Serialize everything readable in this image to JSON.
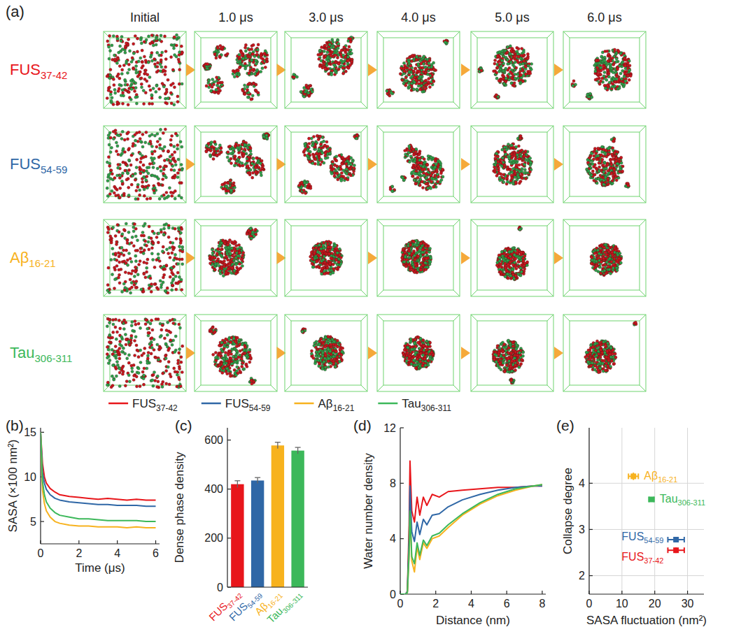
{
  "panel_a": {
    "label": "(a)",
    "columns": [
      "Initial",
      "1.0 μs",
      "3.0 μs",
      "4.0 μs",
      "5.0 μs",
      "6.0 μs"
    ],
    "rows": [
      {
        "name": "FUS37-42",
        "color": "#e8161b"
      },
      {
        "name": "FUS54-59",
        "color": "#2f67a6"
      },
      {
        "name": "Aβ16-21",
        "color": "#f7b21e"
      },
      {
        "name": "Tau306-311",
        "color": "#3cb85a"
      }
    ]
  },
  "chart_data": [
    {
      "type": "line",
      "title": "(b)",
      "x_label": "Time (μs)",
      "y_label": "SASA (×100 nm²)",
      "x": [
        0,
        0.1,
        0.2,
        0.3,
        0.5,
        0.75,
        1,
        1.5,
        2,
        2.5,
        3,
        3.5,
        4,
        4.5,
        5,
        5.5,
        6
      ],
      "series": [
        {
          "name": "FUS37-42",
          "color": "#e8161b",
          "values": [
            15,
            11.5,
            10,
            9.3,
            8.7,
            8.3,
            8.0,
            7.8,
            7.7,
            7.6,
            7.5,
            7.6,
            7.5,
            7.4,
            7.5,
            7.4,
            7.4
          ]
        },
        {
          "name": "FUS54-59",
          "color": "#2f67a6",
          "values": [
            15,
            10.5,
            9.3,
            8.6,
            8.0,
            7.6,
            7.4,
            7.2,
            7.1,
            7.0,
            6.9,
            6.9,
            6.8,
            6.8,
            6.8,
            6.7,
            6.7
          ]
        },
        {
          "name": "Aβ16-21",
          "color": "#f7b21e",
          "values": [
            15,
            8.5,
            7.0,
            6.2,
            5.5,
            5.0,
            4.8,
            4.6,
            4.5,
            4.5,
            4.4,
            4.4,
            4.4,
            4.3,
            4.4,
            4.3,
            4.3
          ]
        },
        {
          "name": "Tau306-311",
          "color": "#3cb85a",
          "values": [
            15,
            9.5,
            8.0,
            7.2,
            6.5,
            6.0,
            5.7,
            5.5,
            5.3,
            5.3,
            5.2,
            5.1,
            5.1,
            5.1,
            5.1,
            5.0,
            5.0
          ]
        }
      ],
      "xlim": [
        0,
        6.2
      ],
      "xticks": [
        0,
        2,
        4,
        6
      ],
      "ylim": [
        2.5,
        15.5
      ],
      "yticks": [
        5,
        10,
        15
      ],
      "legend": "top"
    },
    {
      "type": "bar",
      "title": "(c)",
      "y_label": "Dense phase density",
      "categories": [
        "FUS37-42",
        "FUS54-59",
        "Aβ16-21",
        "Tau306-311"
      ],
      "values": [
        420,
        435,
        578,
        557
      ],
      "errors": [
        14,
        12,
        13,
        13
      ],
      "colors": [
        "#e8161b",
        "#2f67a6",
        "#f7b21e",
        "#3cb85a"
      ],
      "ylim": [
        0,
        650
      ],
      "yticks": [
        0,
        200,
        400,
        600
      ]
    },
    {
      "type": "line",
      "title": "(d)",
      "x_label": "Distance (nm)",
      "y_label": "Water number density",
      "x": [
        0,
        0.3,
        0.4,
        0.5,
        0.55,
        0.65,
        0.8,
        0.95,
        1.1,
        1.3,
        1.5,
        1.8,
        2.2,
        2.7,
        3.5,
        4.5,
        5.5,
        6.5,
        7.5,
        8
      ],
      "series": [
        {
          "color": "#e8161b",
          "values": [
            0,
            0,
            0.2,
            5,
            9.6,
            6,
            5.2,
            7.0,
            5.7,
            7.0,
            6.4,
            7.2,
            7.0,
            7.4,
            7.5,
            7.6,
            7.7,
            7.7,
            7.8,
            7.8
          ]
        },
        {
          "color": "#2f67a6",
          "values": [
            0,
            0,
            0.2,
            4,
            7.8,
            4.5,
            3.8,
            5.2,
            4.3,
            5.4,
            5.0,
            5.7,
            5.8,
            6.3,
            6.8,
            7.2,
            7.5,
            7.7,
            7.8,
            7.8
          ]
        },
        {
          "color": "#f7b21e",
          "values": [
            0,
            0,
            0.1,
            2.8,
            5.9,
            2.4,
            1.6,
            3.4,
            2.5,
            3.7,
            3.3,
            4.0,
            4.2,
            4.8,
            5.7,
            6.5,
            7.1,
            7.5,
            7.8,
            7.9
          ]
        },
        {
          "color": "#3cb85a",
          "values": [
            0,
            0,
            0.1,
            3,
            6.0,
            2.7,
            2.2,
            3.7,
            2.8,
            3.9,
            3.5,
            4.2,
            4.4,
            5.0,
            5.8,
            6.6,
            7.2,
            7.6,
            7.8,
            7.9
          ]
        }
      ],
      "xlim": [
        0,
        8.2
      ],
      "xticks": [
        0,
        2,
        4,
        6,
        8
      ],
      "ylim": [
        0,
        12
      ],
      "yticks": [
        0,
        4,
        8,
        12
      ]
    },
    {
      "type": "scatter",
      "title": "(e)",
      "x_label": "SASA fluctuation (nm²)",
      "y_label": "Collapse degree",
      "series": [
        {
          "name": "Aβ16-21",
          "color": "#f7b21e",
          "x": [
            13.5
          ],
          "values": [
            4.15
          ],
          "x_errors": [
            1.5
          ],
          "errors": [
            0.08
          ]
        },
        {
          "name": "Tau306-311",
          "color": "#3cb85a",
          "x": [
            19
          ],
          "values": [
            3.65
          ],
          "x_errors": [
            0.8
          ],
          "errors": [
            0.05
          ]
        },
        {
          "name": "FUS54-59",
          "color": "#2f67a6",
          "x": [
            26.5
          ],
          "values": [
            2.78
          ],
          "x_errors": [
            2.5
          ],
          "errors": [
            0.05
          ]
        },
        {
          "name": "FUS37-42",
          "color": "#e8161b",
          "x": [
            26.5
          ],
          "values": [
            2.55
          ],
          "x_errors": [
            2.5
          ],
          "errors": [
            0.06
          ]
        }
      ],
      "xlim": [
        0,
        35
      ],
      "xticks": [
        0,
        10,
        20,
        30
      ],
      "ylim": [
        1.6,
        5.2
      ],
      "yticks": [
        2,
        3,
        4
      ],
      "grid": true,
      "marker": "square"
    }
  ]
}
